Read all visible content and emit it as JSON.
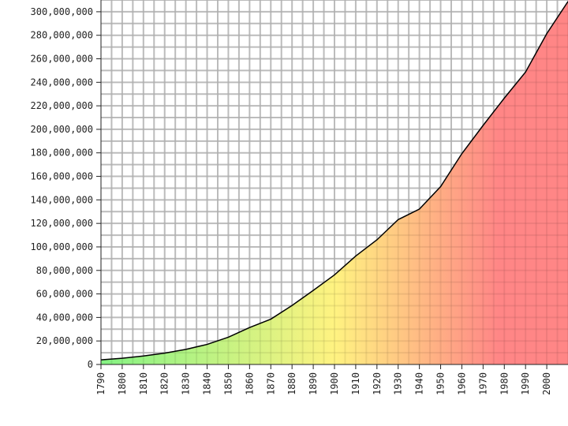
{
  "chart_data": {
    "type": "area",
    "title": "",
    "xlabel": "",
    "ylabel": "",
    "x": [
      1790,
      1800,
      1810,
      1820,
      1830,
      1840,
      1850,
      1860,
      1870,
      1880,
      1890,
      1900,
      1910,
      1920,
      1930,
      1940,
      1950,
      1960,
      1970,
      1980,
      1990,
      2000,
      2010
    ],
    "series": [
      {
        "name": "",
        "values": [
          3929214,
          5308483,
          7239881,
          9638453,
          12866020,
          17069453,
          23191876,
          31443321,
          38558371,
          50189209,
          62979766,
          76212168,
          92228496,
          106021537,
          123202624,
          132164569,
          151325798,
          179323175,
          203302031,
          226542199,
          248709873,
          281421906,
          308745538
        ]
      }
    ],
    "xlim": [
      1790,
      2010
    ],
    "ylim": [
      0,
      310000000
    ],
    "x_tick_labels": [
      "1790",
      "1800",
      "1810",
      "1820",
      "1830",
      "1840",
      "1850",
      "1860",
      "1870",
      "1880",
      "1890",
      "1900",
      "1910",
      "1920",
      "1930",
      "1940",
      "1950",
      "1960",
      "1970",
      "1980",
      "1990",
      "2000"
    ],
    "y_tick_labels": [
      "0",
      "20,000,000",
      "40,000,000",
      "60,000,000",
      "80,000,000",
      "100,000,000",
      "120,000,000",
      "140,000,000",
      "160,000,000",
      "180,000,000",
      "200,000,000",
      "220,000,000",
      "240,000,000",
      "260,000,000",
      "280,000,000",
      "300,000,000"
    ],
    "y_tick_values": [
      0,
      20000000,
      40000000,
      60000000,
      80000000,
      100000000,
      120000000,
      140000000,
      160000000,
      180000000,
      200000000,
      220000000,
      240000000,
      260000000,
      280000000,
      300000000
    ],
    "grid": true,
    "fill_gradient": [
      "#7ef27e",
      "#fff27a",
      "#ff8080"
    ],
    "line_color": "#000000"
  }
}
